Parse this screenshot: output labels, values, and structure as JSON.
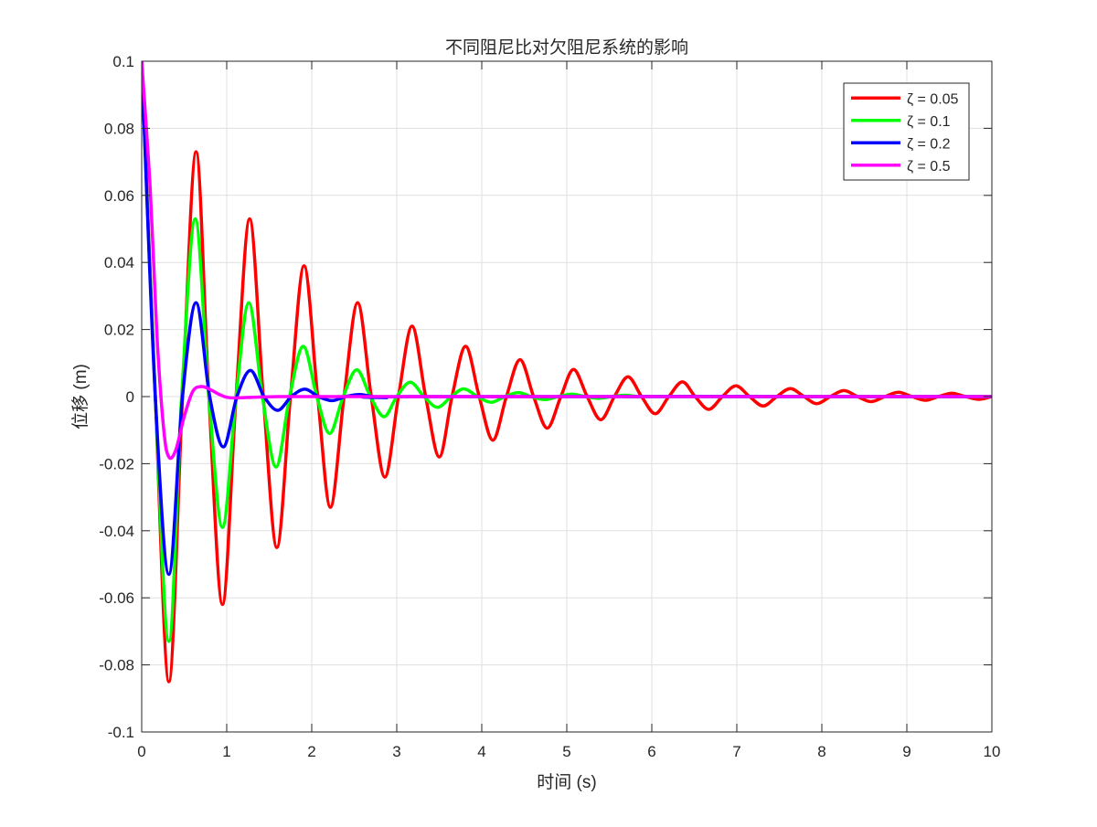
{
  "chart_data": {
    "type": "line",
    "title": "不同阻尼比对欠阻尼系统的影响",
    "xlabel": "时间 (s)",
    "ylabel": "位移 (m)",
    "xlim": [
      0,
      10
    ],
    "ylim": [
      -0.1,
      0.1
    ],
    "xticks": [
      0,
      1,
      2,
      3,
      4,
      5,
      6,
      7,
      8,
      9,
      10
    ],
    "xtick_labels": [
      "0",
      "1",
      "2",
      "3",
      "4",
      "5",
      "6",
      "7",
      "8",
      "9",
      "10"
    ],
    "yticks": [
      -0.1,
      -0.08,
      -0.06,
      -0.04,
      -0.02,
      0,
      0.02,
      0.04,
      0.06,
      0.08,
      0.1
    ],
    "ytick_labels": [
      "-0.1",
      "-0.08",
      "-0.06",
      "-0.04",
      "-0.02",
      "0",
      "0.02",
      "0.04",
      "0.06",
      "0.08",
      "0.1"
    ],
    "grid": true,
    "legend_position": "top-right",
    "series": [
      {
        "name": "ζ = 0.05",
        "color": "#ff0000",
        "x": [
          0,
          0.16,
          0.32,
          0.48,
          0.64,
          0.79,
          0.95,
          1.11,
          1.27,
          1.43,
          1.59,
          1.75,
          1.91,
          2.07,
          2.22,
          2.38,
          2.54,
          2.7,
          2.86,
          3.02,
          3.18,
          3.34,
          3.5,
          3.65,
          3.81,
          3.97,
          4.13,
          4.29,
          4.45,
          4.61,
          4.77,
          4.93,
          5.08,
          5.24,
          5.4,
          5.56,
          5.72,
          5.88,
          6.04,
          6.2,
          6.36,
          6.51,
          6.67,
          6.83,
          6.99,
          7.15,
          7.31,
          7.47,
          7.63,
          7.79,
          7.94,
          8.1,
          8.26,
          8.42,
          8.58,
          8.74,
          8.9,
          9.06,
          9.22,
          9.37,
          9.53,
          9.69,
          9.85,
          10.0
        ],
        "y": [
          0.1,
          0.0,
          -0.085,
          0.0,
          0.073,
          0.0,
          -0.062,
          0.0,
          0.053,
          0.0,
          -0.045,
          0.0,
          0.039,
          0.0,
          -0.033,
          0.0,
          0.028,
          0.0,
          -0.024,
          0.0,
          0.021,
          0.0,
          -0.018,
          0.0,
          0.015,
          0.0,
          -0.013,
          0.0,
          0.011,
          0.0,
          -0.0094,
          0.0,
          0.0081,
          0.0,
          -0.0069,
          0.0,
          0.0059,
          0.0,
          -0.0051,
          0.0,
          0.0044,
          0.0,
          -0.0038,
          0.0,
          0.0032,
          0.0,
          -0.0028,
          0.0,
          0.0024,
          0.0,
          -0.0021,
          0.0,
          0.0018,
          0.0,
          -0.0015,
          0.0,
          0.0013,
          0.0,
          -0.0011,
          0.0,
          0.001,
          0.0,
          -0.0008,
          0.0
        ]
      },
      {
        "name": "ζ = 0.1",
        "color": "#00ff00",
        "x": [
          0,
          0.16,
          0.32,
          0.47,
          0.63,
          0.79,
          0.95,
          1.11,
          1.26,
          1.42,
          1.58,
          1.74,
          1.9,
          2.06,
          2.21,
          2.37,
          2.53,
          2.69,
          2.85,
          3.0,
          3.16,
          3.32,
          3.48,
          3.64,
          3.79,
          3.95,
          4.11,
          4.27,
          4.43,
          4.58,
          4.74,
          4.9,
          5.06,
          5.22,
          5.37,
          5.53,
          5.69,
          5.85,
          6.0,
          10.0
        ],
        "y": [
          0.1,
          0.0,
          -0.073,
          0.0,
          0.053,
          0.0,
          -0.039,
          0.0,
          0.028,
          0.0,
          -0.021,
          0.0,
          0.015,
          0.0,
          -0.011,
          0.0,
          0.008,
          0.0,
          -0.006,
          0.0,
          0.0043,
          0.0,
          -0.0032,
          0.0,
          0.0023,
          0.0,
          -0.0017,
          0.0,
          0.0012,
          0.0,
          -0.0009,
          0.0,
          0.0007,
          0.0,
          -0.0005,
          0.0,
          0.0004,
          0.0,
          0.0,
          0.0
        ]
      },
      {
        "name": "ζ = 0.2",
        "color": "#0000ff",
        "x": [
          0,
          0.16,
          0.32,
          0.48,
          0.64,
          0.8,
          0.96,
          1.12,
          1.28,
          1.44,
          1.6,
          1.76,
          1.92,
          2.08,
          2.24,
          2.4,
          2.56,
          2.72,
          2.88,
          3.2,
          10.0
        ],
        "y": [
          0.1,
          0.0,
          -0.053,
          0.0,
          0.028,
          0.0,
          -0.015,
          0.0,
          0.0078,
          0.0,
          -0.0041,
          0.0,
          0.0022,
          0.0,
          -0.0012,
          0.0,
          0.0006,
          0.0,
          -0.0003,
          0.0,
          0.0
        ]
      },
      {
        "name": "ζ = 0.5",
        "color": "#ff00ff",
        "x": [
          0,
          0.1,
          0.18,
          0.26,
          0.32,
          0.4,
          0.5,
          0.6,
          0.7,
          0.8,
          0.9,
          1.0,
          1.1,
          1.3,
          1.6,
          2.0,
          3.0,
          10.0
        ],
        "y": [
          0.1,
          0.062,
          0.018,
          -0.01,
          -0.018,
          -0.016,
          -0.006,
          0.0015,
          0.003,
          0.0022,
          0.0008,
          -0.0002,
          -0.0004,
          -0.0002,
          0.0,
          0.0,
          0.0,
          0.0
        ]
      }
    ]
  }
}
